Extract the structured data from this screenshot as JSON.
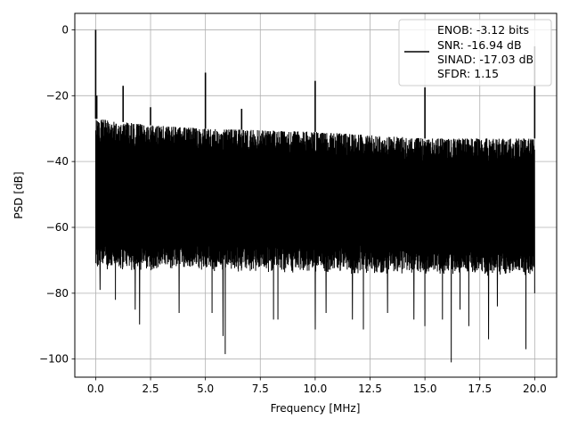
{
  "chart_data": {
    "type": "line",
    "title": "",
    "xlabel": "Frequency [MHz]",
    "ylabel": "PSD [dB]",
    "xlim": [
      -0.95,
      21.0
    ],
    "ylim": [
      -105.5,
      5.0
    ],
    "grid": true,
    "x_ticks": [
      0.0,
      2.5,
      5.0,
      7.5,
      10.0,
      12.5,
      15.0,
      17.5,
      20.0
    ],
    "x_tick_labels": [
      "0.0",
      "2.5",
      "5.0",
      "7.5",
      "10.0",
      "12.5",
      "15.0",
      "17.5",
      "20.0"
    ],
    "y_ticks": [
      0,
      -20,
      -40,
      -60,
      -80,
      -100
    ],
    "y_tick_labels": [
      "0",
      "−20",
      "−40",
      "−60",
      "−80",
      "−100"
    ],
    "legend_position": "top-right",
    "legend": [
      "ENOB: -3.12 bits",
      "SNR: -16.94 dB",
      "SINAD: -17.03 dB",
      "SFDR: 1.15"
    ],
    "series": [
      {
        "color": "#000000",
        "noise_floor": {
          "x_start": 0.0,
          "x_end": 20.0,
          "upper_envelope": [
            [
              0.0,
              -27
            ],
            [
              2.5,
              -29
            ],
            [
              5.0,
              -30
            ],
            [
              10.0,
              -31
            ],
            [
              15.0,
              -33
            ],
            [
              20.0,
              -33
            ]
          ],
          "lower_envelope": [
            [
              0.0,
              -70
            ],
            [
              20.0,
              -72
            ]
          ],
          "deep_nulls": [
            [
              0.2,
              -79
            ],
            [
              0.9,
              -82
            ],
            [
              1.8,
              -85
            ],
            [
              2.0,
              -89.5
            ],
            [
              3.8,
              -86
            ],
            [
              5.3,
              -86
            ],
            [
              5.8,
              -93
            ],
            [
              5.9,
              -98.5
            ],
            [
              8.1,
              -88
            ],
            [
              8.3,
              -88
            ],
            [
              10.0,
              -91
            ],
            [
              10.5,
              -86
            ],
            [
              11.7,
              -88
            ],
            [
              12.2,
              -91
            ],
            [
              13.3,
              -86
            ],
            [
              14.5,
              -88
            ],
            [
              15.0,
              -90
            ],
            [
              15.8,
              -88
            ],
            [
              16.2,
              -101
            ],
            [
              16.6,
              -85
            ],
            [
              17.0,
              -90
            ],
            [
              17.9,
              -94
            ],
            [
              18.3,
              -84
            ],
            [
              19.6,
              -97
            ],
            [
              20.0,
              -80
            ]
          ]
        },
        "spurs": [
          {
            "x": 0.0,
            "y": 0.0
          },
          {
            "x": 0.05,
            "y": -20.0
          },
          {
            "x": 1.25,
            "y": -17.0
          },
          {
            "x": 2.5,
            "y": -23.5
          },
          {
            "x": 5.0,
            "y": -13.0
          },
          {
            "x": 6.65,
            "y": -24.0
          },
          {
            "x": 10.0,
            "y": -15.5
          },
          {
            "x": 15.0,
            "y": -17.5
          },
          {
            "x": 20.0,
            "y": -5.0
          }
        ]
      }
    ]
  }
}
